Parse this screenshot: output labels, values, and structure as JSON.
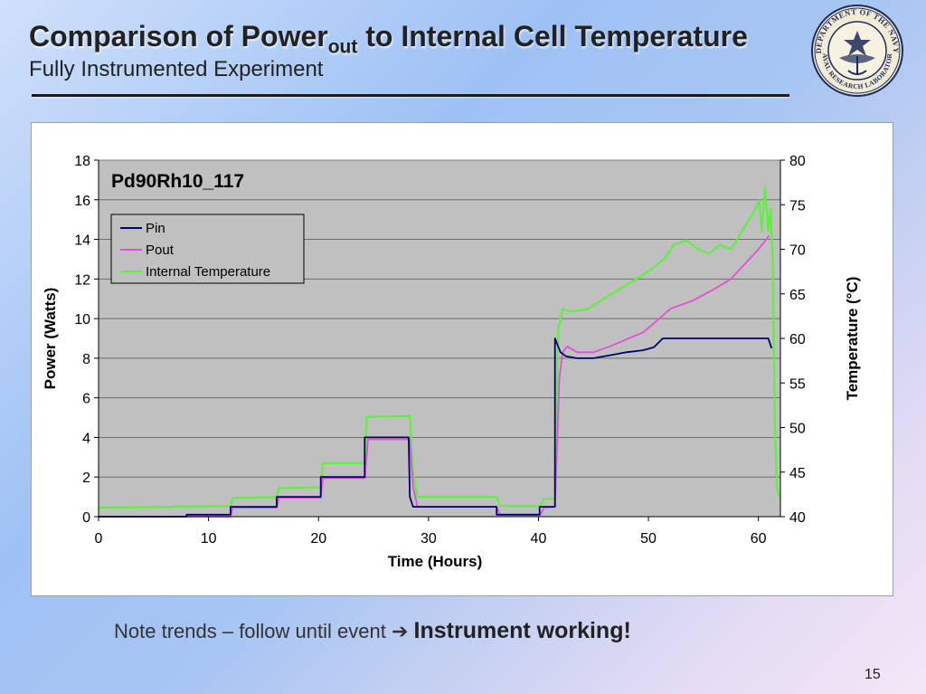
{
  "slide": {
    "title_main": "Comparison of Power",
    "title_sub": "out",
    "title_rest": " to Internal Cell Temperature",
    "subtitle": "Fully Instrumented Experiment",
    "note_text": "Note trends – follow until event ",
    "note_arrow": "➔",
    "note_emphasis": "Instrument working!",
    "page_number": "15"
  },
  "seal": {
    "outer_text": "DEPARTMENT OF THE NAVY",
    "inner_text": "NAVAL RESEARCH LABORATORY"
  },
  "colors": {
    "pin": "#00006e",
    "pout": "#e34fd9",
    "temp": "#5fef3e",
    "plot_bg": "#c0c0c0",
    "grid": "#6e6e6e"
  },
  "chart_data": {
    "type": "line",
    "annotation": "Pd90Rh10_117",
    "xlabel": "Time (Hours)",
    "ylabel": "Power (Watts)",
    "y2label": "Temperature (°C)",
    "xlim": [
      0,
      62
    ],
    "ylim": [
      0,
      18
    ],
    "y2lim": [
      40,
      80
    ],
    "xticks": [
      "0",
      "10",
      "20",
      "30",
      "40",
      "50",
      "60"
    ],
    "yticks": [
      "0",
      "2",
      "4",
      "6",
      "8",
      "10",
      "12",
      "14",
      "16",
      "18"
    ],
    "y2ticks": [
      "40",
      "45",
      "50",
      "55",
      "60",
      "65",
      "70",
      "75",
      "80"
    ],
    "grid": true,
    "legend_position": "upper-left",
    "series": [
      {
        "name": "Pin",
        "axis": "left",
        "points": [
          [
            0,
            0
          ],
          [
            8,
            0
          ],
          [
            8,
            0.1
          ],
          [
            12,
            0.1
          ],
          [
            12,
            0.5
          ],
          [
            16.2,
            0.5
          ],
          [
            16.2,
            1.0
          ],
          [
            20.2,
            1.0
          ],
          [
            20.2,
            2.0
          ],
          [
            24.2,
            2.0
          ],
          [
            24.2,
            4.0
          ],
          [
            28.2,
            4.0
          ],
          [
            28.3,
            1.0
          ],
          [
            28.6,
            0.5
          ],
          [
            36.2,
            0.5
          ],
          [
            36.2,
            0.1
          ],
          [
            40.1,
            0.1
          ],
          [
            40.1,
            0.5
          ],
          [
            41.5,
            0.5
          ],
          [
            41.5,
            9.0
          ],
          [
            42,
            8.3
          ],
          [
            42.5,
            8.1
          ],
          [
            43.5,
            8.0
          ],
          [
            45,
            8.0
          ],
          [
            46.5,
            8.15
          ],
          [
            48,
            8.3
          ],
          [
            49.5,
            8.4
          ],
          [
            50.5,
            8.55
          ],
          [
            51.3,
            9.0
          ],
          [
            60.9,
            9.0
          ],
          [
            61.2,
            8.5
          ]
        ]
      },
      {
        "name": "Pout",
        "axis": "left",
        "points": [
          [
            0,
            0
          ],
          [
            12,
            0
          ],
          [
            12.2,
            0.45
          ],
          [
            16.2,
            0.45
          ],
          [
            16.4,
            0.95
          ],
          [
            20.2,
            0.95
          ],
          [
            20.4,
            1.95
          ],
          [
            24.2,
            1.95
          ],
          [
            24.5,
            3.9
          ],
          [
            28.3,
            3.9
          ],
          [
            28.6,
            1.5
          ],
          [
            29,
            0.5
          ],
          [
            36.2,
            0.5
          ],
          [
            36.5,
            0.1
          ],
          [
            40.2,
            0.1
          ],
          [
            40.5,
            0.45
          ],
          [
            41.5,
            0.5
          ],
          [
            41.9,
            7.0
          ],
          [
            42.2,
            8.3
          ],
          [
            42.6,
            8.6
          ],
          [
            43.5,
            8.3
          ],
          [
            45,
            8.3
          ],
          [
            46.5,
            8.6
          ],
          [
            48,
            8.95
          ],
          [
            49.5,
            9.3
          ],
          [
            51,
            10.0
          ],
          [
            52,
            10.5
          ],
          [
            54,
            10.9
          ],
          [
            56,
            11.5
          ],
          [
            57.5,
            12.0
          ],
          [
            59,
            12.9
          ],
          [
            60,
            13.5
          ],
          [
            61,
            14.2
          ]
        ]
      },
      {
        "name": "Internal Temperature",
        "axis": "right",
        "points": [
          [
            0,
            41.0
          ],
          [
            12,
            41.2
          ],
          [
            12.2,
            42.1
          ],
          [
            16.2,
            42.2
          ],
          [
            16.4,
            43.2
          ],
          [
            20.2,
            43.3
          ],
          [
            20.4,
            46.0
          ],
          [
            24.2,
            46.0
          ],
          [
            24.4,
            51.2
          ],
          [
            28.3,
            51.3
          ],
          [
            28.6,
            45.0
          ],
          [
            29,
            42.2
          ],
          [
            36.2,
            42.2
          ],
          [
            36.5,
            41.2
          ],
          [
            40.2,
            41.2
          ],
          [
            40.5,
            42.0
          ],
          [
            41.5,
            42.0
          ],
          [
            41.8,
            61.0
          ],
          [
            42.2,
            63.3
          ],
          [
            43,
            63.0
          ],
          [
            44.5,
            63.3
          ],
          [
            46,
            64.5
          ],
          [
            48,
            66.0
          ],
          [
            50,
            67.5
          ],
          [
            51.5,
            69.0
          ],
          [
            52.3,
            70.5
          ],
          [
            53.5,
            71.0
          ],
          [
            54.5,
            70.0
          ],
          [
            55.5,
            69.5
          ],
          [
            56.5,
            70.5
          ],
          [
            57.5,
            70.0
          ],
          [
            58.5,
            72.0
          ],
          [
            59.5,
            74.0
          ],
          [
            60.1,
            75.5
          ],
          [
            60.3,
            72.0
          ],
          [
            60.6,
            77.0
          ],
          [
            60.9,
            72.0
          ],
          [
            61.1,
            74.5
          ],
          [
            61.3,
            69.0
          ],
          [
            61.5,
            50.0
          ],
          [
            61.7,
            43.0
          ],
          [
            62,
            42.0
          ]
        ]
      }
    ]
  }
}
